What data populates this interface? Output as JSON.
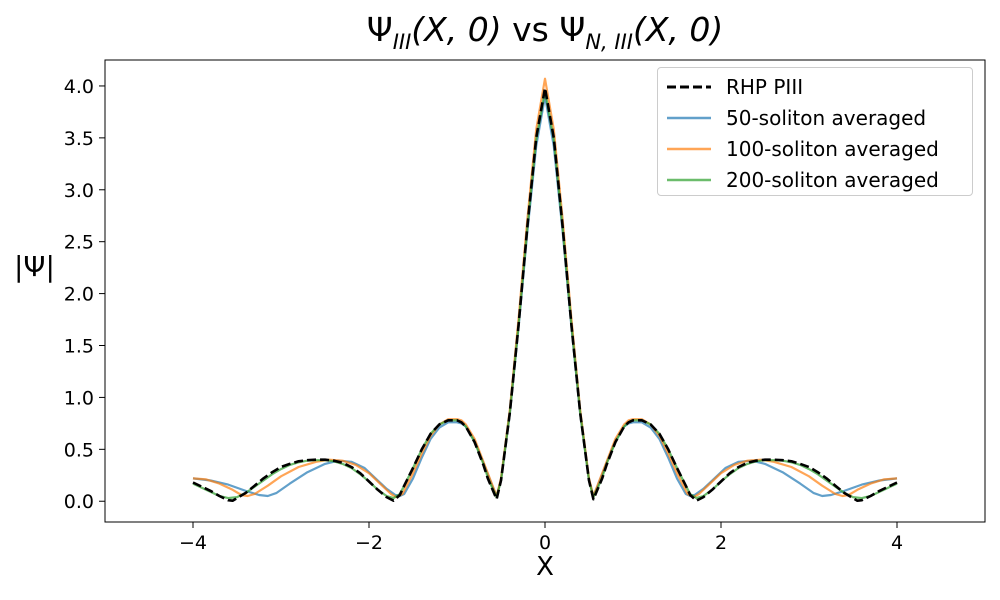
{
  "chart_data": {
    "type": "line",
    "title_parts": {
      "a": "Ψ",
      "a_sub": "III",
      "a_args": "(X, 0)",
      "vs": " vs ",
      "b": "Ψ",
      "b_sub": "N, III",
      "b_args": "(X, 0)"
    },
    "xlabel": "X",
    "ylabel": "|Ψ|",
    "xlim": [
      -5,
      5
    ],
    "ylim": [
      -0.2,
      4.25
    ],
    "xticks": [
      -4,
      -2,
      0,
      2,
      4
    ],
    "xtick_labels": [
      "−4",
      "−2",
      "0",
      "2",
      "4"
    ],
    "yticks": [
      0.0,
      0.5,
      1.0,
      1.5,
      2.0,
      2.5,
      3.0,
      3.5,
      4.0
    ],
    "ytick_labels": [
      "0.0",
      "0.5",
      "1.0",
      "1.5",
      "2.0",
      "2.5",
      "3.0",
      "3.5",
      "4.0"
    ],
    "grid": false,
    "legend_position": "top-right",
    "series": [
      {
        "name": "RHP PIII",
        "color": "#000000",
        "style": "dashed",
        "x": [
          -4,
          -3.9,
          -3.8,
          -3.7,
          -3.6,
          -3.55,
          -3.5,
          -3.4,
          -3.3,
          -3.2,
          -3.1,
          -3,
          -2.9,
          -2.8,
          -2.7,
          -2.6,
          -2.5,
          -2.4,
          -2.3,
          -2.2,
          -2.1,
          -2,
          -1.9,
          -1.8,
          -1.72,
          -1.65,
          -1.6,
          -1.5,
          -1.4,
          -1.3,
          -1.2,
          -1.1,
          -1,
          -0.95,
          -0.9,
          -0.8,
          -0.7,
          -0.65,
          -0.6,
          -0.55,
          -0.5,
          -0.4,
          -0.3,
          -0.2,
          -0.1,
          0,
          0.1,
          0.2,
          0.3,
          0.4,
          0.5,
          0.55,
          0.6,
          0.65,
          0.7,
          0.8,
          0.9,
          0.95,
          1,
          1.1,
          1.2,
          1.3,
          1.4,
          1.5,
          1.6,
          1.65,
          1.72,
          1.8,
          1.9,
          2,
          2.1,
          2.2,
          2.3,
          2.4,
          2.5,
          2.6,
          2.7,
          2.8,
          2.9,
          3,
          3.1,
          3.2,
          3.3,
          3.4,
          3.5,
          3.55,
          3.6,
          3.7,
          3.8,
          3.9,
          4
        ],
        "y": [
          0.18,
          0.14,
          0.1,
          0.05,
          0.01,
          0.005,
          0.03,
          0.08,
          0.15,
          0.22,
          0.28,
          0.33,
          0.36,
          0.385,
          0.395,
          0.4,
          0.4,
          0.39,
          0.37,
          0.33,
          0.27,
          0.19,
          0.11,
          0.04,
          0.005,
          0.06,
          0.15,
          0.32,
          0.5,
          0.65,
          0.74,
          0.78,
          0.78,
          0.76,
          0.72,
          0.57,
          0.35,
          0.22,
          0.12,
          0.02,
          0.2,
          0.85,
          1.7,
          2.65,
          3.5,
          3.98,
          3.5,
          2.65,
          1.7,
          0.85,
          0.2,
          0.02,
          0.12,
          0.22,
          0.35,
          0.57,
          0.72,
          0.76,
          0.78,
          0.78,
          0.74,
          0.65,
          0.5,
          0.32,
          0.15,
          0.06,
          0.005,
          0.04,
          0.11,
          0.19,
          0.27,
          0.33,
          0.37,
          0.39,
          0.4,
          0.4,
          0.395,
          0.385,
          0.36,
          0.33,
          0.28,
          0.22,
          0.15,
          0.08,
          0.03,
          0.005,
          0.01,
          0.05,
          0.1,
          0.14,
          0.18
        ]
      },
      {
        "name": "50-soliton averaged",
        "color": "#1f77b4",
        "style": "solid",
        "x": [
          -4,
          -3.8,
          -3.6,
          -3.4,
          -3.25,
          -3.15,
          -3.05,
          -2.9,
          -2.7,
          -2.5,
          -2.35,
          -2.2,
          -2.05,
          -1.9,
          -1.8,
          -1.7,
          -1.65,
          -1.6,
          -1.5,
          -1.4,
          -1.3,
          -1.2,
          -1.1,
          -1,
          -0.95,
          -0.9,
          -0.8,
          -0.7,
          -0.6,
          -0.55,
          -0.5,
          -0.4,
          -0.3,
          -0.2,
          -0.1,
          0,
          0.1,
          0.2,
          0.3,
          0.4,
          0.5,
          0.55,
          0.6,
          0.7,
          0.8,
          0.9,
          0.95,
          1,
          1.1,
          1.2,
          1.3,
          1.4,
          1.5,
          1.6,
          1.65,
          1.7,
          1.8,
          1.9,
          2.05,
          2.2,
          2.35,
          2.5,
          2.7,
          2.9,
          3.05,
          3.15,
          3.25,
          3.4,
          3.6,
          3.8,
          4
        ],
        "y": [
          0.22,
          0.2,
          0.16,
          0.1,
          0.06,
          0.05,
          0.08,
          0.17,
          0.28,
          0.36,
          0.39,
          0.38,
          0.32,
          0.2,
          0.12,
          0.06,
          0.05,
          0.07,
          0.22,
          0.42,
          0.6,
          0.71,
          0.76,
          0.76,
          0.75,
          0.72,
          0.58,
          0.37,
          0.15,
          0.05,
          0.2,
          0.84,
          1.68,
          2.6,
          3.42,
          3.9,
          3.42,
          2.6,
          1.68,
          0.84,
          0.2,
          0.05,
          0.15,
          0.37,
          0.58,
          0.72,
          0.75,
          0.76,
          0.76,
          0.71,
          0.6,
          0.42,
          0.22,
          0.07,
          0.05,
          0.06,
          0.12,
          0.2,
          0.32,
          0.38,
          0.39,
          0.36,
          0.28,
          0.17,
          0.08,
          0.05,
          0.06,
          0.1,
          0.16,
          0.2,
          0.22
        ]
      },
      {
        "name": "100-soliton averaged",
        "color": "#ff7f0e",
        "style": "solid",
        "x": [
          -4,
          -3.85,
          -3.7,
          -3.55,
          -3.45,
          -3.38,
          -3.3,
          -3.15,
          -3,
          -2.8,
          -2.6,
          -2.45,
          -2.3,
          -2.15,
          -2,
          -1.85,
          -1.75,
          -1.69,
          -1.62,
          -1.5,
          -1.4,
          -1.3,
          -1.2,
          -1.1,
          -1,
          -0.95,
          -0.9,
          -0.8,
          -0.7,
          -0.6,
          -0.55,
          -0.5,
          -0.4,
          -0.3,
          -0.2,
          -0.1,
          0,
          0.1,
          0.2,
          0.3,
          0.4,
          0.5,
          0.55,
          0.6,
          0.7,
          0.8,
          0.9,
          0.95,
          1,
          1.1,
          1.2,
          1.3,
          1.4,
          1.5,
          1.62,
          1.69,
          1.75,
          1.85,
          2,
          2.15,
          2.3,
          2.45,
          2.6,
          2.8,
          3,
          3.15,
          3.3,
          3.38,
          3.45,
          3.55,
          3.7,
          3.85,
          4
        ],
        "y": [
          0.22,
          0.21,
          0.17,
          0.11,
          0.06,
          0.05,
          0.07,
          0.15,
          0.24,
          0.33,
          0.38,
          0.4,
          0.39,
          0.35,
          0.27,
          0.15,
          0.07,
          0.04,
          0.07,
          0.27,
          0.46,
          0.63,
          0.74,
          0.79,
          0.79,
          0.78,
          0.74,
          0.6,
          0.38,
          0.16,
          0.05,
          0.22,
          0.88,
          1.76,
          2.72,
          3.58,
          4.07,
          3.58,
          2.72,
          1.76,
          0.88,
          0.22,
          0.05,
          0.16,
          0.38,
          0.6,
          0.74,
          0.78,
          0.79,
          0.79,
          0.74,
          0.63,
          0.46,
          0.27,
          0.07,
          0.04,
          0.07,
          0.15,
          0.27,
          0.35,
          0.39,
          0.4,
          0.38,
          0.33,
          0.24,
          0.15,
          0.07,
          0.05,
          0.06,
          0.11,
          0.17,
          0.21,
          0.22
        ]
      },
      {
        "name": "200-soliton averaged",
        "color": "#2ca02c",
        "style": "solid",
        "x": [
          -4,
          -3.9,
          -3.8,
          -3.7,
          -3.6,
          -3.5,
          -3.4,
          -3.3,
          -3.2,
          -3.1,
          -3,
          -2.9,
          -2.8,
          -2.7,
          -2.6,
          -2.5,
          -2.4,
          -2.3,
          -2.2,
          -2.1,
          -2,
          -1.9,
          -1.8,
          -1.72,
          -1.65,
          -1.6,
          -1.5,
          -1.4,
          -1.3,
          -1.2,
          -1.1,
          -1,
          -0.95,
          -0.9,
          -0.8,
          -0.7,
          -0.65,
          -0.6,
          -0.55,
          -0.5,
          -0.4,
          -0.3,
          -0.2,
          -0.1,
          0,
          0.1,
          0.2,
          0.3,
          0.4,
          0.5,
          0.55,
          0.6,
          0.65,
          0.7,
          0.8,
          0.9,
          0.95,
          1,
          1.1,
          1.2,
          1.3,
          1.4,
          1.5,
          1.6,
          1.65,
          1.72,
          1.8,
          1.9,
          2,
          2.1,
          2.2,
          2.3,
          2.4,
          2.5,
          2.6,
          2.7,
          2.8,
          2.9,
          3,
          3.1,
          3.2,
          3.3,
          3.4,
          3.5,
          3.6,
          3.7,
          3.8,
          3.9,
          4
        ],
        "y": [
          0.17,
          0.13,
          0.09,
          0.05,
          0.03,
          0.04,
          0.08,
          0.14,
          0.2,
          0.26,
          0.31,
          0.35,
          0.375,
          0.39,
          0.395,
          0.395,
          0.385,
          0.36,
          0.32,
          0.26,
          0.19,
          0.11,
          0.05,
          0.03,
          0.07,
          0.15,
          0.32,
          0.5,
          0.65,
          0.74,
          0.78,
          0.78,
          0.76,
          0.72,
          0.57,
          0.36,
          0.23,
          0.13,
          0.04,
          0.2,
          0.85,
          1.7,
          2.64,
          3.48,
          3.95,
          3.48,
          2.64,
          1.7,
          0.85,
          0.2,
          0.04,
          0.13,
          0.23,
          0.36,
          0.57,
          0.72,
          0.76,
          0.78,
          0.78,
          0.74,
          0.65,
          0.5,
          0.32,
          0.15,
          0.07,
          0.03,
          0.05,
          0.11,
          0.19,
          0.26,
          0.32,
          0.36,
          0.385,
          0.395,
          0.395,
          0.39,
          0.375,
          0.35,
          0.31,
          0.26,
          0.2,
          0.14,
          0.08,
          0.04,
          0.03,
          0.05,
          0.09,
          0.13,
          0.17
        ]
      }
    ]
  }
}
